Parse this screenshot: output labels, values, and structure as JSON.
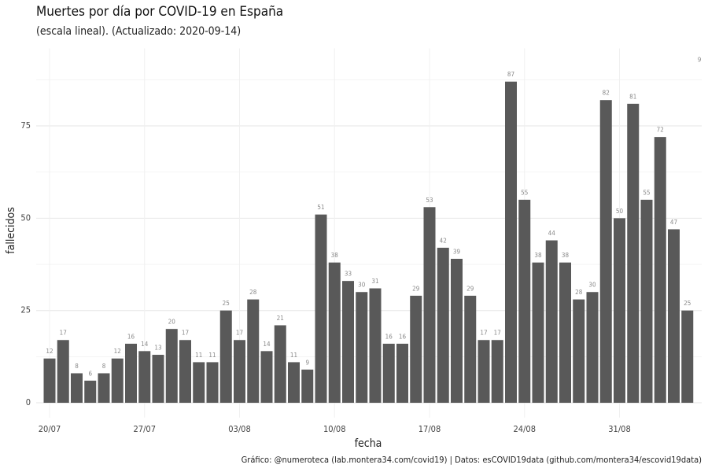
{
  "chart_data": {
    "type": "bar",
    "title": "Muertes por día por COVID-19 en España",
    "subtitle": "(escala lineal). (Actualizado: 2020-09-14)",
    "xlabel": "fecha",
    "ylabel": "fallecidos",
    "caption": "Gráfico: @numeroteca (lab.montera34.com/covid19) | Datos: esCOVID19data (github.com/montera34/escovid19data)",
    "annotation": "9",
    "categories": [
      "20/07",
      null,
      null,
      null,
      null,
      null,
      null,
      "27/07",
      null,
      null,
      null,
      null,
      null,
      null,
      "03/08",
      null,
      null,
      null,
      null,
      null,
      null,
      "10/08",
      null,
      null,
      null,
      null,
      null,
      null,
      "17/08",
      null,
      null,
      null,
      null,
      null,
      null,
      "24/08",
      null,
      null,
      null,
      null,
      null,
      null,
      "31/08",
      null,
      null,
      null,
      null,
      null
    ],
    "values": [
      12,
      17,
      8,
      6,
      8,
      12,
      16,
      14,
      13,
      20,
      17,
      11,
      11,
      25,
      17,
      28,
      14,
      21,
      11,
      9,
      51,
      38,
      33,
      30,
      31,
      16,
      16,
      29,
      53,
      42,
      39,
      29,
      17,
      17,
      87,
      55,
      38,
      44,
      38,
      28,
      30,
      82,
      50,
      81,
      55,
      72,
      47,
      25
    ],
    "color": "#595959",
    "ylim": [
      -4,
      96
    ],
    "yticks": [
      0,
      25,
      50,
      75
    ],
    "minor_yticks": [
      12.5,
      37.5,
      62.5,
      87.5
    ],
    "grid": true
  }
}
